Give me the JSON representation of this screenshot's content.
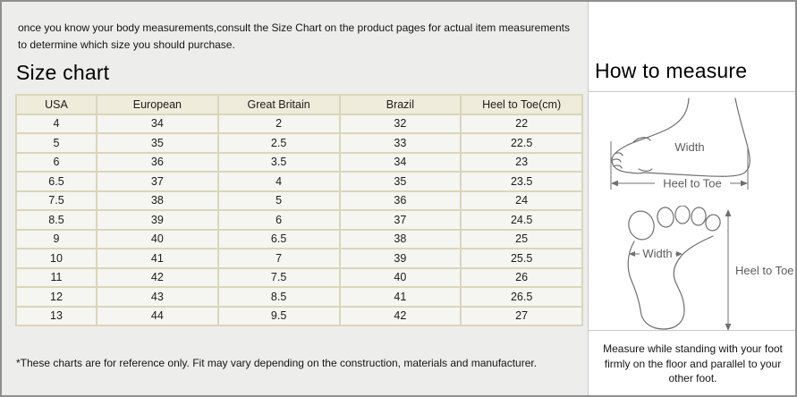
{
  "intro_text": "once you know your body measurements,consult the Size Chart on the product pages for actual item measurements to determine which size you should purchase.",
  "size_chart": {
    "title": "Size chart",
    "table": {
      "headers": [
        "USA",
        "European",
        "Great Britain",
        "Brazil",
        "Heel to Toe(cm)"
      ],
      "rows": [
        [
          "4",
          "34",
          "2",
          "32",
          "22"
        ],
        [
          "5",
          "35",
          "2.5",
          "33",
          "22.5"
        ],
        [
          "6",
          "36",
          "3.5",
          "34",
          "23"
        ],
        [
          "6.5",
          "37",
          "4",
          "35",
          "23.5"
        ],
        [
          "7.5",
          "38",
          "5",
          "36",
          "24"
        ],
        [
          "8.5",
          "39",
          "6",
          "37",
          "24.5"
        ],
        [
          "9",
          "40",
          "6.5",
          "38",
          "25"
        ],
        [
          "10",
          "41",
          "7",
          "39",
          "25.5"
        ],
        [
          "11",
          "42",
          "7.5",
          "40",
          "26"
        ],
        [
          "12",
          "43",
          "8.5",
          "41",
          "26.5"
        ],
        [
          "13",
          "44",
          "9.5",
          "42",
          "27"
        ]
      ]
    },
    "disclaimer": "*These charts are for reference only. Fit may vary depending on the construction, materials and manufacturer."
  },
  "how_to_measure": {
    "title": "How to measure",
    "side_view": {
      "width_label": "Width",
      "heel_label": "Heel to Toe"
    },
    "top_view": {
      "width_label": "Width",
      "heel_label": "Heel to Toe"
    },
    "note": "Measure while standing with your foot firmly on the floor and parallel to your other foot."
  },
  "colors": {
    "page_background": "#ededec",
    "outer_border": "#8f8f8f",
    "table_border": "#d9d6ba",
    "table_header_bg": "#efecdb",
    "table_cell_bg": "#f5f5f1",
    "panel_bg": "#ffffff",
    "sketch_stroke": "#6f6f6f",
    "text_color": "#141414"
  }
}
